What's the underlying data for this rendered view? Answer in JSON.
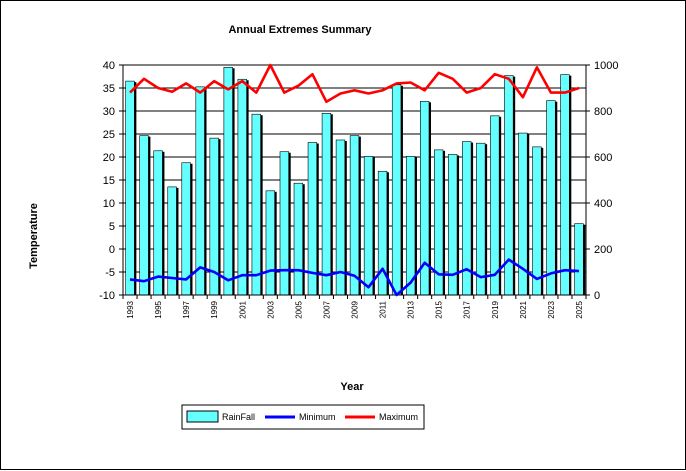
{
  "chart_data": {
    "type": "bar",
    "title": "Annual Extremes Summary",
    "xlabel": "Year",
    "ylabel": "Temperature",
    "ylim": [
      -10,
      40
    ],
    "yticks": [
      -10,
      -5,
      0,
      5,
      10,
      15,
      20,
      25,
      30,
      35,
      40
    ],
    "y2lim": [
      0,
      1000
    ],
    "y2ticks": [
      0,
      200,
      400,
      600,
      800,
      1000
    ],
    "grid": true,
    "legend_position": "bottom",
    "categories": [
      1993,
      1994,
      1995,
      1996,
      1997,
      1998,
      1999,
      2000,
      2001,
      2002,
      2003,
      2004,
      2005,
      2006,
      2007,
      2008,
      2009,
      2010,
      2011,
      2012,
      2013,
      2014,
      2015,
      2016,
      2017,
      2018,
      2019,
      2020,
      2021,
      2022,
      2023,
      2024,
      2025
    ],
    "x_tick_labels": [
      "1993",
      "1995",
      "1997",
      "1999",
      "2001",
      "2003",
      "2005",
      "2007",
      "2009",
      "2011",
      "2013",
      "2015",
      "2017",
      "2019",
      "2021",
      "2023",
      "2025"
    ],
    "series": [
      {
        "name": "RainFall",
        "kind": "bar",
        "axis": "right",
        "color": "#66ffff",
        "values": [
          930,
          693,
          627,
          470,
          575,
          905,
          682,
          990,
          938,
          786,
          453,
          623,
          486,
          663,
          790,
          674,
          693,
          603,
          538,
          914,
          603,
          842,
          631,
          611,
          667,
          660,
          779,
          954,
          704,
          644,
          845,
          958,
          310
        ]
      },
      {
        "name": "Minimum",
        "kind": "line",
        "axis": "left",
        "color": "#0000ff",
        "values": [
          -6.6,
          -7.0,
          -6.0,
          -6.3,
          -6.6,
          -4.0,
          -5.0,
          -6.8,
          -5.7,
          -5.7,
          -4.7,
          -4.6,
          -4.6,
          -5.2,
          -5.7,
          -5.0,
          -5.8,
          -8.3,
          -4.3,
          -10.0,
          -7.3,
          -3.0,
          -5.5,
          -5.6,
          -4.4,
          -6.1,
          -5.6,
          -2.3,
          -4.3,
          -6.5,
          -5.3,
          -4.6,
          -4.8
        ]
      },
      {
        "name": "Maximum",
        "kind": "line",
        "axis": "left",
        "color": "#ff0000",
        "values": [
          34.0,
          37.0,
          35.0,
          34.2,
          36.0,
          34.0,
          36.5,
          34.7,
          36.5,
          34.0,
          40.0,
          34.0,
          35.5,
          38.0,
          32.0,
          33.8,
          34.5,
          33.8,
          34.5,
          36.0,
          36.2,
          34.5,
          38.3,
          37.0,
          34.0,
          35.0,
          38.0,
          37.0,
          33.0,
          39.5,
          34.0,
          34.0,
          35.0
        ]
      }
    ]
  }
}
